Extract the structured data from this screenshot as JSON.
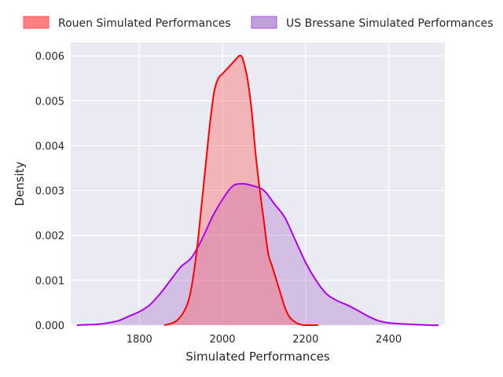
{
  "chart_data": {
    "type": "area",
    "title": "",
    "xlabel": "Simulated Performances",
    "ylabel": "Density",
    "xlim": [
      1635,
      2535
    ],
    "ylim": [
      0,
      0.0063
    ],
    "xticks": [
      1800,
      2000,
      2200,
      2400
    ],
    "yticks": [
      0,
      0.001,
      0.002,
      0.003,
      0.004,
      0.005,
      0.006
    ],
    "ytick_labels": [
      "0.000",
      "0.001",
      "0.002",
      "0.003",
      "0.004",
      "0.005",
      "0.006"
    ],
    "grid": true,
    "legend_position": "top",
    "series": [
      {
        "name": "Rouen Simulated Performances",
        "color": "#ff0000",
        "x": [
          1860,
          1870,
          1880,
          1890,
          1900,
          1910,
          1920,
          1930,
          1940,
          1950,
          1960,
          1970,
          1980,
          1990,
          2000,
          2010,
          2020,
          2030,
          2040,
          2045,
          2050,
          2060,
          2070,
          2080,
          2090,
          2100,
          2110,
          2120,
          2130,
          2140,
          2150,
          2160,
          2170,
          2180,
          2190,
          2200,
          2210,
          2220,
          2230
        ],
        "y": [
          0.0,
          2e-05,
          5e-05,
          0.0001,
          0.0002,
          0.00035,
          0.0006,
          0.0011,
          0.0018,
          0.0027,
          0.0036,
          0.0045,
          0.0052,
          0.0055,
          0.0056,
          0.0057,
          0.0058,
          0.0059,
          0.006,
          0.006,
          0.0059,
          0.0055,
          0.0048,
          0.0038,
          0.003,
          0.0023,
          0.0016,
          0.0013,
          0.001,
          0.0007,
          0.0004,
          0.0002,
          0.0001,
          4e-05,
          1e-05,
          0.0,
          0.0,
          0.0,
          0.0
        ]
      },
      {
        "name": "US Bressane Simulated Performances",
        "color": "#b000f0",
        "x": [
          1650,
          1700,
          1725,
          1750,
          1775,
          1800,
          1825,
          1850,
          1875,
          1900,
          1925,
          1950,
          1975,
          2000,
          2025,
          2050,
          2075,
          2100,
          2125,
          2150,
          2175,
          2200,
          2225,
          2250,
          2275,
          2300,
          2325,
          2350,
          2375,
          2400,
          2450,
          2500,
          2520
        ],
        "y": [
          0.0,
          2e-05,
          5e-05,
          0.0001,
          0.0002,
          0.0003,
          0.00045,
          0.0007,
          0.001,
          0.0013,
          0.0015,
          0.0019,
          0.0024,
          0.0028,
          0.0031,
          0.00315,
          0.0031,
          0.003,
          0.0027,
          0.0024,
          0.0019,
          0.0014,
          0.001,
          0.0007,
          0.00055,
          0.00045,
          0.00033,
          0.0002,
          0.0001,
          5e-05,
          2e-05,
          0.0,
          0.0
        ]
      }
    ]
  }
}
